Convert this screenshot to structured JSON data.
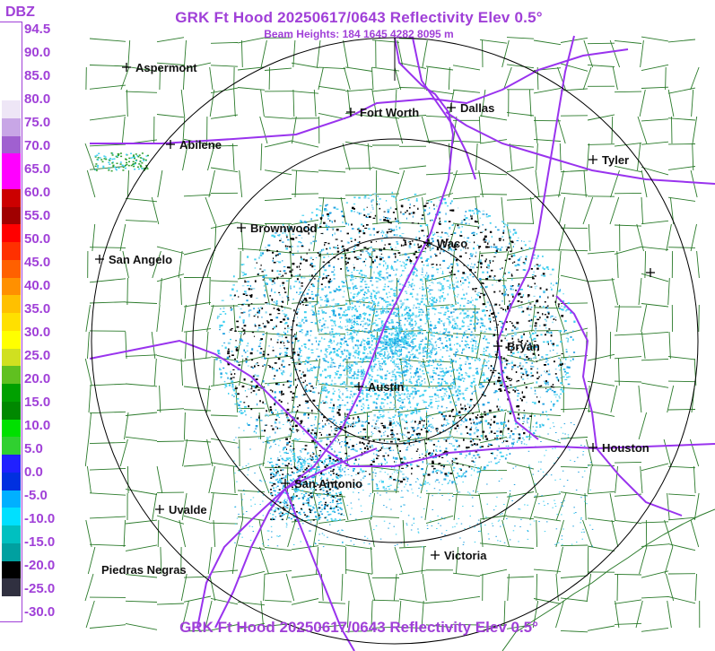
{
  "header": {
    "title": "GRK Ft Hood 20250617/0643 Reflectivity Elev 0.5°",
    "subtitle": "Beam Heights: 184 1645 4282 8095 m",
    "footer_title": "GRK Ft Hood 20250617/0643 Reflectivity Elev 0.5°"
  },
  "legend": {
    "unit": "DBZ",
    "labels": [
      "94.5",
      "90.0",
      "85.0",
      "80.0",
      "75.0",
      "70.0",
      "65.0",
      "60.0",
      "55.0",
      "50.0",
      "45.0",
      "40.0",
      "35.0",
      "30.0",
      "25.0",
      "20.0",
      "15.0",
      "10.0",
      "5.0",
      "0.0",
      "-5.0",
      "-10.0",
      "-15.0",
      "-20.0",
      "-25.0",
      "-30.0"
    ],
    "colors": [
      "#ffffff",
      "#ffffff",
      "#ffffff",
      "#ffffff",
      "#eee6f6",
      "#c8a6e6",
      "#a060d0",
      "#ff00ff",
      "#ff00ff",
      "#cc0000",
      "#a00000",
      "#ff0000",
      "#ff3000",
      "#ff6000",
      "#ff9000",
      "#ffc000",
      "#ffe000",
      "#ffff00",
      "#d0e020",
      "#60c020",
      "#00a000",
      "#008800",
      "#00e000",
      "#30d030",
      "#2020ff",
      "#0030e0",
      "#00b0ff",
      "#00e0ff",
      "#00c0c0",
      "#00a0a0",
      "#000000",
      "#303040",
      "#ffffff"
    ]
  },
  "map": {
    "colors": {
      "counties": "#2a7a2a",
      "highways": "#9933ee",
      "rings": "#000000",
      "echo_light": "#40d0f0",
      "echo_mid": "#20a0e0",
      "echo_dark": "#000000"
    },
    "cities": [
      {
        "name": "Aspermont"
      },
      {
        "name": "Abilene"
      },
      {
        "name": "Fort Worth"
      },
      {
        "name": "Dallas"
      },
      {
        "name": "Tyler"
      },
      {
        "name": "Brownwood"
      },
      {
        "name": "San Angelo"
      },
      {
        "name": "Waco"
      },
      {
        "name": "Bryan"
      },
      {
        "name": "Austin"
      },
      {
        "name": "Houston"
      },
      {
        "name": "San Antonio"
      },
      {
        "name": "Uvalde"
      },
      {
        "name": "Victoria"
      },
      {
        "name": "Piedras Negras"
      }
    ]
  }
}
